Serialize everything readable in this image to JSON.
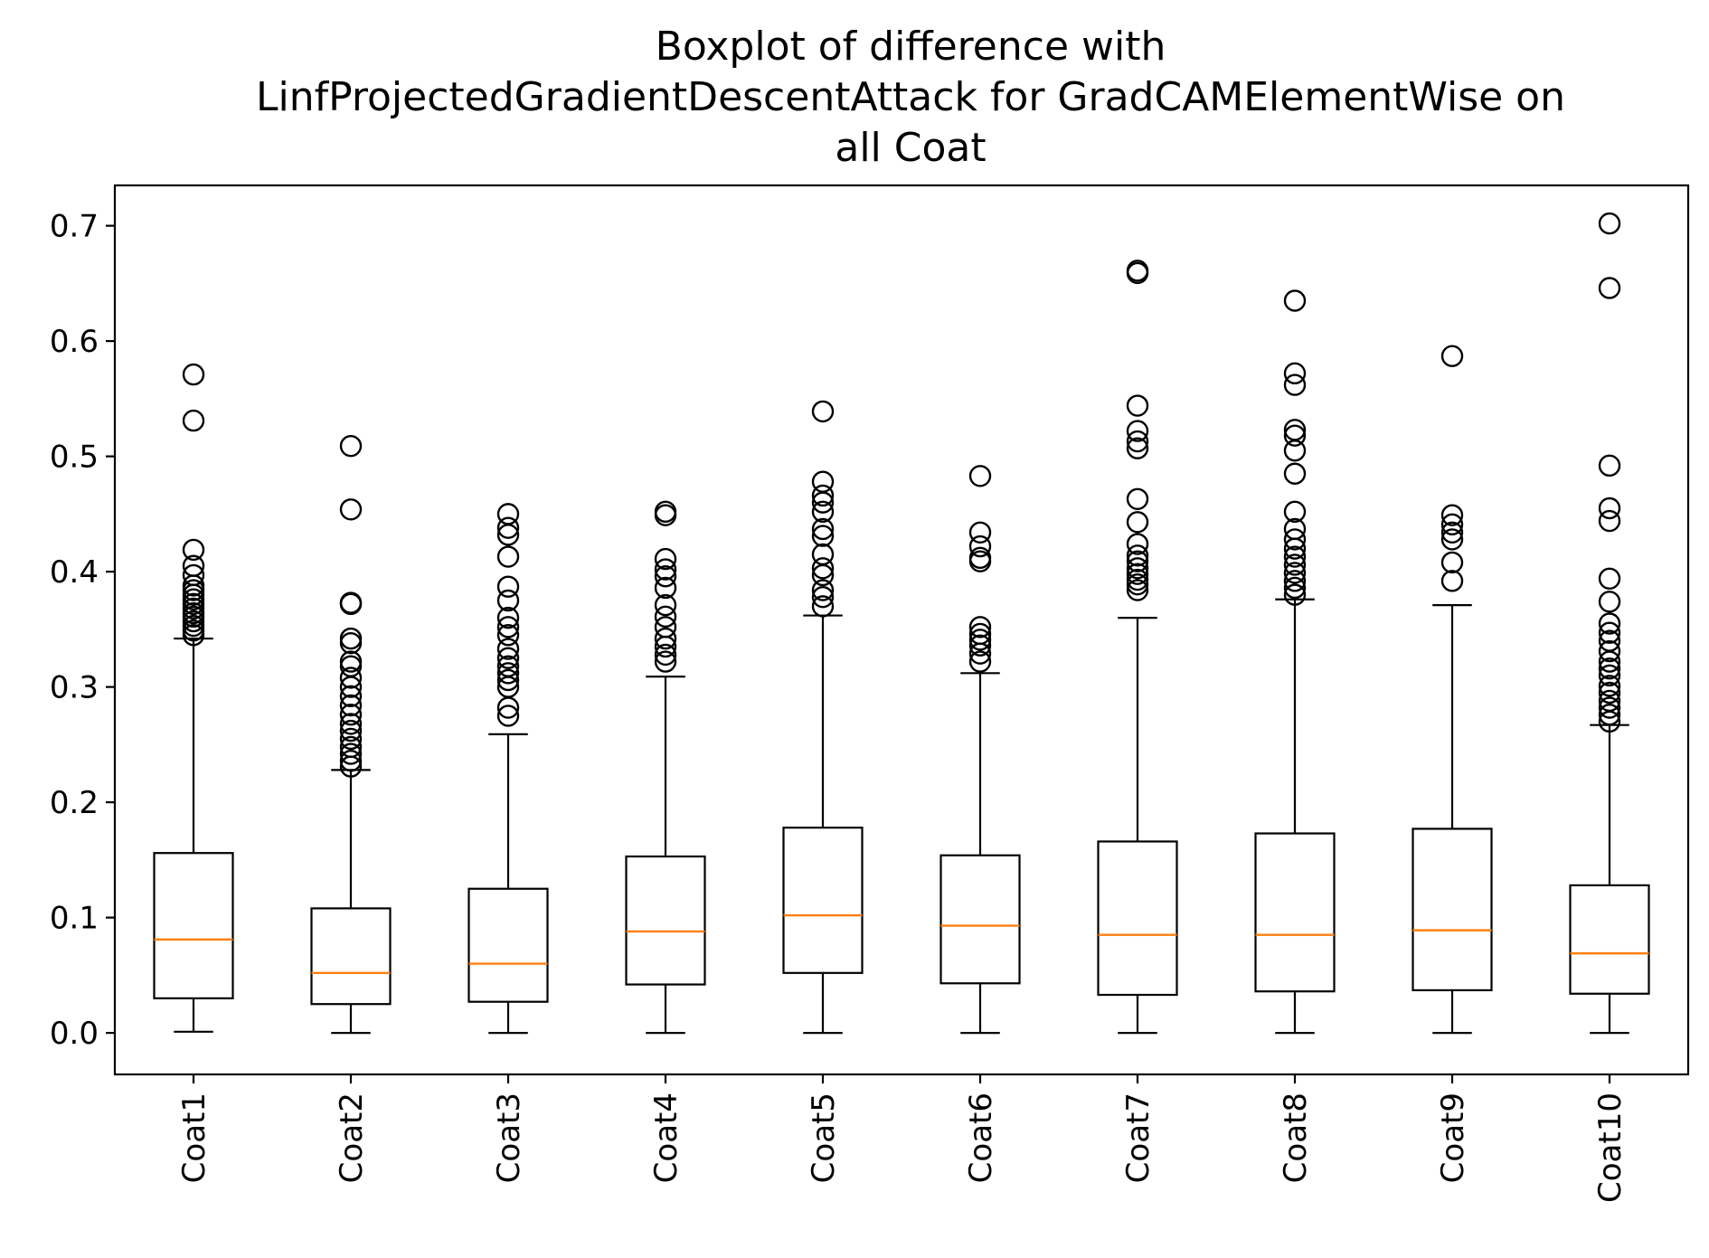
{
  "chart_data": {
    "type": "boxplot",
    "title_lines": [
      "Boxplot of difference with",
      "LinfProjectedGradientDescentAttack for GradCAMElementWise on",
      "all Coat"
    ],
    "xlabel": "",
    "ylabel": "",
    "ylim": [
      -0.036,
      0.735
    ],
    "yticks": [
      0.0,
      0.1,
      0.2,
      0.3,
      0.4,
      0.5,
      0.6,
      0.7
    ],
    "ytick_labels": [
      "0.0",
      "0.1",
      "0.2",
      "0.3",
      "0.4",
      "0.5",
      "0.6",
      "0.7"
    ],
    "grid": false,
    "categories": [
      "Coat1",
      "Coat2",
      "Coat3",
      "Coat4",
      "Coat5",
      "Coat6",
      "Coat7",
      "Coat8",
      "Coat9",
      "Coat10"
    ],
    "colors": {
      "box": "#000000",
      "median": "#ff7f0e",
      "flier_edge": "#000000"
    },
    "boxes": [
      {
        "label": "Coat1",
        "whisker_low": 0.001,
        "q1": 0.03,
        "median": 0.081,
        "q3": 0.156,
        "whisker_high": 0.342,
        "outliers": [
          0.571,
          0.531,
          0.419,
          0.405,
          0.397,
          0.388,
          0.384,
          0.38,
          0.376,
          0.372,
          0.368,
          0.364,
          0.361,
          0.357,
          0.353,
          0.349,
          0.345
        ]
      },
      {
        "label": "Coat2",
        "whisker_low": 0.0,
        "q1": 0.025,
        "median": 0.052,
        "q3": 0.108,
        "whisker_high": 0.228,
        "outliers": [
          0.509,
          0.454,
          0.373,
          0.372,
          0.342,
          0.338,
          0.322,
          0.318,
          0.308,
          0.3,
          0.292,
          0.284,
          0.276,
          0.268,
          0.262,
          0.255,
          0.248,
          0.242,
          0.236,
          0.231
        ]
      },
      {
        "label": "Coat3",
        "whisker_low": 0.0,
        "q1": 0.027,
        "median": 0.06,
        "q3": 0.125,
        "whisker_high": 0.259,
        "outliers": [
          0.45,
          0.438,
          0.432,
          0.413,
          0.387,
          0.375,
          0.36,
          0.352,
          0.345,
          0.333,
          0.325,
          0.318,
          0.312,
          0.306,
          0.3,
          0.282,
          0.275
        ]
      },
      {
        "label": "Coat4",
        "whisker_low": 0.0,
        "q1": 0.042,
        "median": 0.088,
        "q3": 0.153,
        "whisker_high": 0.309,
        "outliers": [
          0.452,
          0.449,
          0.411,
          0.402,
          0.396,
          0.386,
          0.371,
          0.361,
          0.352,
          0.342,
          0.335,
          0.328,
          0.322
        ]
      },
      {
        "label": "Coat5",
        "whisker_low": 0.0,
        "q1": 0.052,
        "median": 0.102,
        "q3": 0.178,
        "whisker_high": 0.362,
        "outliers": [
          0.539,
          0.478,
          0.466,
          0.46,
          0.452,
          0.437,
          0.431,
          0.415,
          0.403,
          0.397,
          0.384,
          0.378,
          0.37
        ]
      },
      {
        "label": "Coat6",
        "whisker_low": 0.0,
        "q1": 0.043,
        "median": 0.093,
        "q3": 0.154,
        "whisker_high": 0.312,
        "outliers": [
          0.483,
          0.434,
          0.422,
          0.412,
          0.409,
          0.352,
          0.346,
          0.341,
          0.336,
          0.329,
          0.322
        ]
      },
      {
        "label": "Coat7",
        "whisker_low": 0.0,
        "q1": 0.033,
        "median": 0.085,
        "q3": 0.166,
        "whisker_high": 0.36,
        "outliers": [
          0.661,
          0.659,
          0.544,
          0.522,
          0.513,
          0.507,
          0.463,
          0.443,
          0.424,
          0.414,
          0.409,
          0.403,
          0.398,
          0.393,
          0.389,
          0.384
        ]
      },
      {
        "label": "Coat8",
        "whisker_low": 0.0,
        "q1": 0.036,
        "median": 0.085,
        "q3": 0.173,
        "whisker_high": 0.376,
        "outliers": [
          0.635,
          0.572,
          0.562,
          0.523,
          0.518,
          0.505,
          0.485,
          0.452,
          0.437,
          0.428,
          0.42,
          0.413,
          0.406,
          0.399,
          0.392,
          0.386,
          0.38
        ]
      },
      {
        "label": "Coat9",
        "whisker_low": 0.0,
        "q1": 0.037,
        "median": 0.089,
        "q3": 0.177,
        "whisker_high": 0.371,
        "outliers": [
          0.587,
          0.449,
          0.441,
          0.434,
          0.428,
          0.408,
          0.392
        ]
      },
      {
        "label": "Coat10",
        "whisker_low": 0.0,
        "q1": 0.034,
        "median": 0.069,
        "q3": 0.128,
        "whisker_high": 0.267,
        "outliers": [
          0.702,
          0.646,
          0.492,
          0.455,
          0.444,
          0.394,
          0.374,
          0.355,
          0.347,
          0.34,
          0.331,
          0.322,
          0.316,
          0.31,
          0.301,
          0.295,
          0.288,
          0.282,
          0.276,
          0.27
        ]
      }
    ]
  }
}
